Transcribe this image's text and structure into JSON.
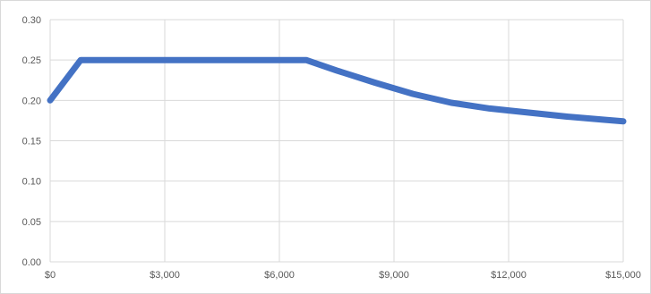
{
  "chart_data": {
    "type": "line",
    "title": "",
    "xlabel": "",
    "ylabel": "",
    "xlim": [
      0,
      15000
    ],
    "ylim": [
      0,
      0.3
    ],
    "x_ticks": [
      0,
      3000,
      6000,
      9000,
      12000,
      15000
    ],
    "x_tick_labels": [
      "$0",
      "$3,000",
      "$6,000",
      "$9,000",
      "$12,000",
      "$15,000"
    ],
    "y_ticks": [
      0,
      0.05,
      0.1,
      0.15,
      0.2,
      0.25,
      0.3
    ],
    "y_tick_labels": [
      "0.00",
      "0.05",
      "0.10",
      "0.15",
      "0.20",
      "0.25",
      "0.30"
    ],
    "grid": true,
    "legend": "none",
    "line_color": "#4472c4",
    "grid_color": "#d9d9d9",
    "series": [
      {
        "x": [
          0,
          800,
          6700,
          7500,
          8500,
          9500,
          10500,
          11500,
          12500,
          13500,
          14500,
          15000
        ],
        "y": [
          0.2,
          0.25,
          0.25,
          0.237,
          0.222,
          0.208,
          0.197,
          0.19,
          0.185,
          0.18,
          0.176,
          0.174
        ]
      }
    ]
  }
}
